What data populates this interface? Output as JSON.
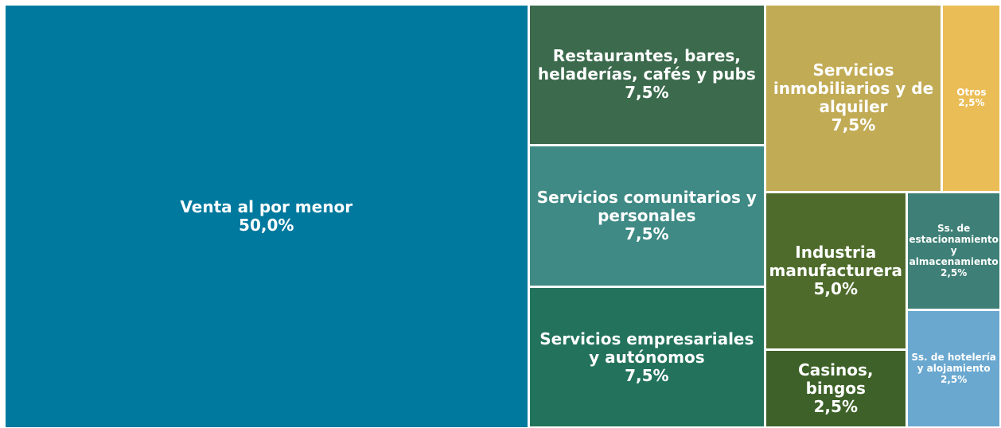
{
  "chart_data": {
    "type": "treemap",
    "categories": [
      "Venta al por menor",
      "Restaurantes, bares, heladerías, cafés y pubs",
      "Servicios comunitarios y personales",
      "Servicios empresariales y autónomos",
      "Servicios inmobiliarios y de alquiler",
      "Otros",
      "Industria manufacturera",
      "Casinos, bingos",
      "Ss. de estacionamiento y almacenamiento",
      "Ss. de hotelería y alojamiento"
    ],
    "values": [
      50,
      7.5,
      7.5,
      7.5,
      7.5,
      2.5,
      5,
      2.5,
      2.5,
      2.5
    ],
    "value_labels": [
      "50,0%",
      "7,5%",
      "7,5%",
      "7,5%",
      "7,5%",
      "2,5%",
      "5,0%",
      "2,5%",
      "2,5%",
      "2,5%"
    ],
    "colors": [
      "#00799e",
      "#3b6a4c",
      "#3f8a85",
      "#23735c",
      "#c1ab55",
      "#ebbd56",
      "#4e6b2b",
      "#3d6128",
      "#3e8077",
      "#6aa8d0"
    ]
  }
}
